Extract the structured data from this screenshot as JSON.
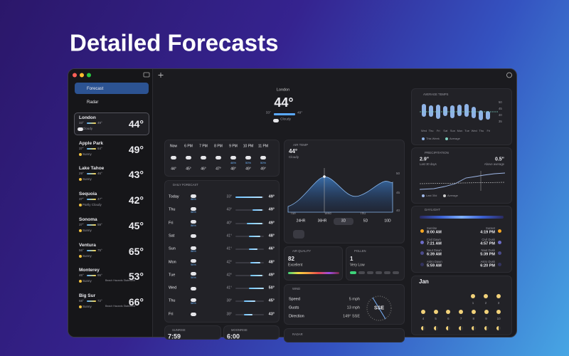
{
  "app": {
    "title": "Detailed Forecasts",
    "nav": [
      "Forecast",
      "Radar"
    ],
    "locations": [
      {
        "name": "London",
        "low": "33°",
        "high": "49°",
        "condition": "Cloudy",
        "temp": "44°"
      },
      {
        "name": "Apple Park",
        "low": "37°",
        "high": "64°",
        "condition": "Sunny",
        "temp": "49°"
      },
      {
        "name": "Lake Tahoe",
        "low": "29°",
        "high": "46°",
        "condition": "Sunny",
        "temp": "43°"
      },
      {
        "name": "Sequoia",
        "low": "37°",
        "high": "47°",
        "condition": "Partly Cloudy",
        "temp": "42°"
      },
      {
        "name": "Sonoma",
        "low": "37°",
        "high": "59°",
        "condition": "Sunny",
        "temp": "45°"
      },
      {
        "name": "Ventura",
        "low": "56°",
        "high": "75°",
        "condition": "Sunny",
        "temp": "65°"
      },
      {
        "name": "Monterey",
        "low": "46°",
        "high": "65°",
        "condition": "Sunny",
        "alert": "Beach Hazards Statement",
        "temp": "53°"
      },
      {
        "name": "Big Sur",
        "low": "58°",
        "high": "72°",
        "condition": "Sunny",
        "alert": "Beach Hazards Statement",
        "temp": "66°"
      }
    ],
    "current": {
      "location": "London",
      "temp": "44°",
      "low": "33°",
      "high": "49°",
      "condition": "Cloudy"
    },
    "hourly": [
      {
        "time": "Now",
        "temp": "44°"
      },
      {
        "time": "6 PM",
        "temp": "45°"
      },
      {
        "time": "7 PM",
        "temp": "46°"
      },
      {
        "time": "8 PM",
        "temp": "47°"
      },
      {
        "time": "9 PM",
        "precip": "46%",
        "temp": "48°"
      },
      {
        "time": "10 PM",
        "precip": "50%",
        "temp": "49°"
      },
      {
        "time": "11 PM",
        "precip": "50%",
        "temp": "49°"
      }
    ],
    "daily": {
      "title": "DAILY FORECAST",
      "days": [
        {
          "day": "Today",
          "precip": "86%",
          "low": "33°",
          "high": "49°"
        },
        {
          "day": "Thu",
          "precip": "66%",
          "low": "43°",
          "high": "49°"
        },
        {
          "day": "Fri",
          "precip": "86%",
          "low": "40°",
          "high": "49°"
        },
        {
          "day": "Sat",
          "low": "41°",
          "high": "48°"
        },
        {
          "day": "Sun",
          "precip": "86%",
          "low": "41°",
          "high": "46°"
        },
        {
          "day": "Mon",
          "precip": "90%",
          "low": "42°",
          "high": "48°"
        },
        {
          "day": "Tue",
          "precip": "90%",
          "low": "42°",
          "high": "49°"
        },
        {
          "day": "Wed",
          "low": "41°",
          "high": "50°"
        },
        {
          "day": "Thu",
          "precip": "66%",
          "low": "38°",
          "high": "45°"
        },
        {
          "day": "Fri",
          "low": "38°",
          "high": "43°"
        }
      ]
    },
    "air_temp": {
      "title": "AIR TEMP",
      "temp": "44°",
      "condition": "Cloudy",
      "axis": [
        "50",
        "45",
        "40"
      ],
      "days": [
        "Tue",
        "Wed",
        "Thu"
      ],
      "ranges": [
        "24HR",
        "36HR",
        "3D",
        "5D",
        "10D"
      ]
    },
    "air_quality": {
      "title": "AIR QUALITY",
      "value": "82",
      "label": "Excellent"
    },
    "pollen": {
      "title": "POLLEN",
      "value": "1",
      "label": "Very Low"
    },
    "wind": {
      "title": "WIND",
      "rows": [
        [
          "Speed",
          "5 mph"
        ],
        [
          "Gusts",
          "13 mph"
        ],
        [
          "Direction",
          "149° SSE"
        ]
      ],
      "compass": "SSE"
    },
    "sunrise": {
      "title": "SUNRISE",
      "value": "7:59"
    },
    "moonrise": {
      "title": "MOONRISE",
      "value": "6:00"
    },
    "radar": {
      "title": "RADAR"
    },
    "avg_temps": {
      "title": "AVERAGE TEMPS",
      "axis": [
        "50",
        "45",
        "40",
        "35"
      ],
      "days": [
        "Wed",
        "Thu",
        "Fri",
        "Sat",
        "Sun",
        "Mon",
        "Tue",
        "Wed",
        "Thu",
        "Fri"
      ],
      "legend": [
        "This Week",
        "Average"
      ]
    },
    "precipitation": {
      "title": "PRECIPITATION",
      "amount": "2.9\"",
      "period": "Last 30 days",
      "diff": "0.5\"",
      "diff_label": "Above average",
      "legend": [
        "Last 30d",
        "Average"
      ]
    },
    "daylight": {
      "title": "DAYLIGHT",
      "rows": [
        {
          "left": {
            "label": "Sunrise",
            "time": "8:00 AM"
          },
          "right": {
            "label": "Sunset",
            "time": "4:19 PM"
          }
        },
        {
          "left": {
            "label": "Civil Dawn",
            "time": "7:21 AM"
          },
          "right": {
            "label": "Civil Dusk",
            "time": "4:57 PM"
          }
        },
        {
          "left": {
            "label": "Naut Dawn",
            "time": "6:39 AM"
          },
          "right": {
            "label": "Naut Dusk",
            "time": "5:39 PM"
          }
        },
        {
          "left": {
            "label": "Astro Dawn",
            "time": "5:59 AM"
          },
          "right": {
            "label": "Astro Dusk",
            "time": "6:20 PM"
          }
        }
      ]
    },
    "calendar": {
      "month": "Jan",
      "days": [
        "1",
        "2",
        "3",
        "4",
        "5",
        "6",
        "7",
        "8",
        "9",
        "10"
      ]
    }
  }
}
